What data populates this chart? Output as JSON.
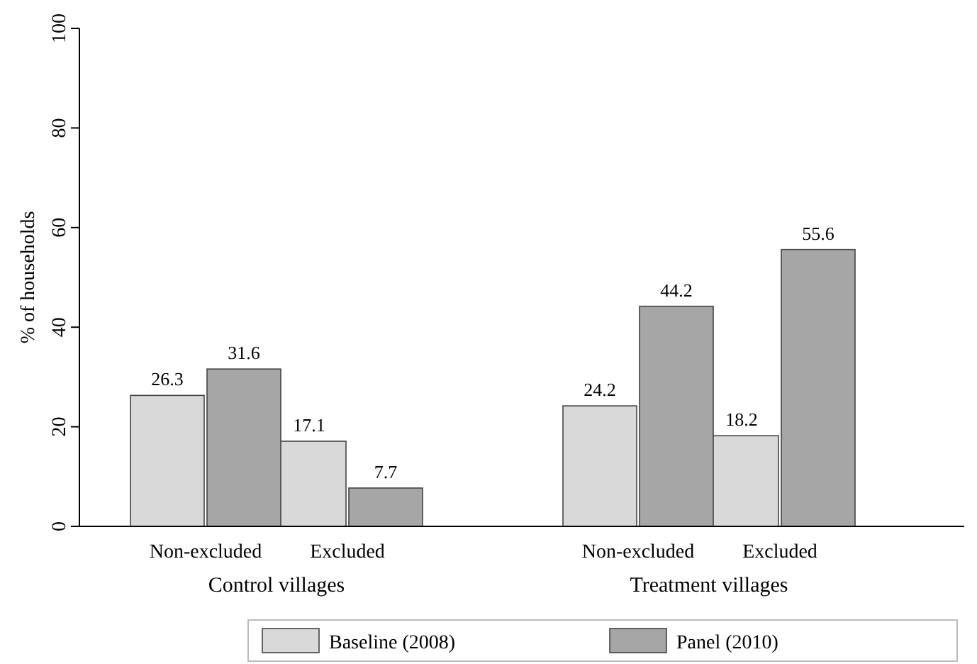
{
  "chart_data": {
    "type": "bar",
    "ylabel": "% of households",
    "categories": [
      "Non-excluded",
      "Excluded",
      "Non-excluded",
      "Excluded"
    ],
    "series": [
      {
        "name": "Baseline (2008)",
        "color": "#d9d9d9",
        "values": [
          26.3,
          17.1,
          24.2,
          18.2
        ]
      },
      {
        "name": "Panel (2010)",
        "color": "#a6a6a6",
        "values": [
          31.6,
          7.7,
          44.2,
          55.6
        ]
      }
    ],
    "ylim": [
      0,
      100
    ],
    "yticks": [
      0,
      20,
      40,
      60,
      80,
      100
    ],
    "data_labels": true,
    "grid": false,
    "legend": "bottom",
    "annotations": [
      "Control villages",
      "Treatment villages"
    ]
  }
}
